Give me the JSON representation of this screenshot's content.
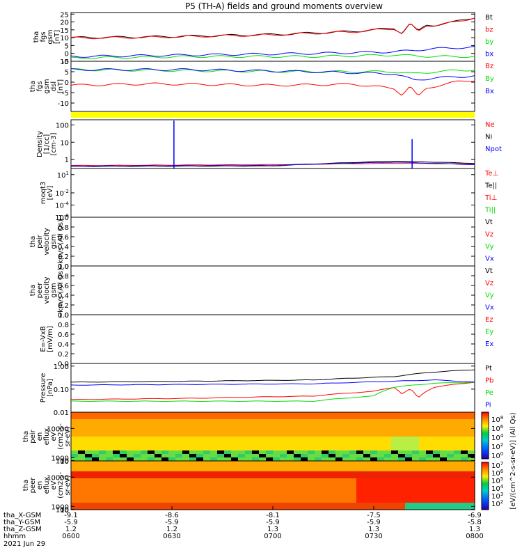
{
  "title": "P5 (TH-A) fields and ground moments overview",
  "date": "2021 Jun 29",
  "colors": {
    "black": "#000000",
    "red": "#ff0000",
    "green": "#00dd00",
    "blue": "#0000ff",
    "yellow": "#ffff00"
  },
  "ephemeris": {
    "labels": [
      "tha_X-GSM",
      "tha_Y-GSM",
      "tha_Z-GSM",
      "hhmm"
    ],
    "columns": [
      [
        "-9.1",
        "-5.9",
        "1.2",
        "0600"
      ],
      [
        "-8.6",
        "-5.9",
        "1.2",
        "0630"
      ],
      [
        "-8.1",
        "-5.9",
        "1.3",
        "0700"
      ],
      [
        "-7.5",
        "-5.9",
        "1.3",
        "0730"
      ],
      [
        "-6.9",
        "-5.8",
        "1.3",
        "0800"
      ]
    ]
  },
  "chart_data": [
    {
      "id": "p1",
      "type": "line",
      "ylabel": [
        "tha",
        "fgs",
        "gsm",
        "[nT]"
      ],
      "ylim": [
        -5,
        26
      ],
      "ticks": [
        {
          "v": 25,
          "t": "25"
        },
        {
          "v": 20,
          "t": "20"
        },
        {
          "v": 15,
          "t": "15"
        },
        {
          "v": 10,
          "t": "10"
        },
        {
          "v": 5,
          "t": "5"
        },
        {
          "v": 0,
          "t": "0"
        },
        {
          "v": -5,
          "t": "-5"
        }
      ],
      "series": [
        {
          "name": "Bt",
          "color": "#000000",
          "x": [
            0,
            0.2,
            0.5,
            0.7,
            0.8,
            0.82,
            0.84,
            0.86,
            0.88,
            0.9,
            0.95,
            1
          ],
          "y": [
            10,
            10.5,
            12,
            14,
            16,
            13,
            19,
            14,
            18,
            18,
            20,
            23
          ]
        },
        {
          "name": "bz",
          "color": "#ff0000",
          "x": [
            0,
            0.2,
            0.5,
            0.7,
            0.8,
            0.82,
            0.84,
            0.86,
            0.88,
            0.9,
            0.95,
            1
          ],
          "y": [
            9.8,
            10.3,
            11.8,
            13.8,
            15.8,
            12.8,
            18.8,
            13.8,
            17.8,
            17.8,
            19.8,
            22.8
          ]
        },
        {
          "name": "by",
          "color": "#00dd00",
          "x": [
            0,
            0.3,
            0.6,
            0.8,
            0.9,
            1
          ],
          "y": [
            -3,
            -2,
            -2,
            -1,
            -2,
            -2
          ]
        },
        {
          "name": "bx",
          "color": "#0000ff",
          "x": [
            0,
            0.3,
            0.6,
            0.8,
            0.9,
            1
          ],
          "y": [
            -2,
            -1,
            0,
            1,
            3,
            4
          ]
        }
      ]
    },
    {
      "id": "p2",
      "type": "line",
      "ylabel": [
        "tha",
        "fgs",
        "gsm",
        "dsl",
        "[nT]"
      ],
      "ylim": [
        -14,
        10
      ],
      "ticks": [
        {
          "v": 10,
          "t": "10"
        },
        {
          "v": 5,
          "t": "5"
        },
        {
          "v": 0,
          "t": "0"
        },
        {
          "v": -5,
          "t": "-5"
        },
        {
          "v": -10,
          "t": "-10"
        }
      ],
      "series": [
        {
          "name": "Bz",
          "color": "#ff0000",
          "x": [
            0,
            0.2,
            0.5,
            0.7,
            0.8,
            0.82,
            0.84,
            0.86,
            0.88,
            0.9,
            0.95,
            1
          ],
          "y": [
            -1.5,
            -0.8,
            -1.5,
            -1,
            -3,
            -6,
            -2,
            -7,
            -3,
            -2,
            0,
            1
          ]
        },
        {
          "name": "By",
          "color": "#00dd00",
          "x": [
            0,
            0.3,
            0.6,
            0.8,
            0.85,
            0.9,
            1
          ],
          "y": [
            6,
            5.5,
            5,
            5,
            4,
            5,
            6
          ]
        },
        {
          "name": "Bx",
          "color": "#0000ff",
          "x": [
            0,
            0.3,
            0.6,
            0.8,
            0.85,
            0.9,
            1
          ],
          "y": [
            6,
            6,
            5,
            4,
            1,
            2,
            3
          ]
        }
      ]
    },
    {
      "id": "p3",
      "type": "line",
      "log": true,
      "ylabel": [
        "Density",
        "[1/cc]",
        "[cm-3]"
      ],
      "ylim": [
        0.3,
        200
      ],
      "ticks": [
        {
          "v": 100,
          "t": "100"
        },
        {
          "v": 10,
          "t": "10"
        },
        {
          "v": 1,
          "t": "1"
        }
      ],
      "series": [
        {
          "name": "Ne",
          "color": "#ff0000",
          "x": [
            0,
            0.5,
            0.8,
            1
          ],
          "y": [
            0.45,
            0.5,
            0.6,
            0.55
          ]
        },
        {
          "name": "Ni",
          "color": "#000000",
          "x": [
            0,
            0.5,
            0.8,
            1
          ],
          "y": [
            0.4,
            0.42,
            0.8,
            0.6
          ]
        },
        {
          "name": "Npot",
          "color": "#0000ff",
          "x": [
            0,
            0.5,
            0.8,
            1
          ],
          "y": [
            0.42,
            0.45,
            0.7,
            0.5
          ]
        }
      ],
      "spikes": [
        {
          "x": 0.255,
          "y": 180,
          "color": "#0000ff"
        },
        {
          "x": 0.845,
          "y": 15,
          "color": "#0000ff"
        }
      ]
    },
    {
      "id": "p4",
      "type": "line",
      "log": true,
      "ylabel": [
        "moqt3",
        "[eV]"
      ],
      "ylim": [
        1e-06,
        100
      ],
      "ticks": [
        {
          "v": 10,
          "t": "10^1"
        },
        {
          "v": 0.01,
          "t": "10^-2"
        },
        {
          "v": 0.0001,
          "t": "10^-4"
        },
        {
          "v": 1e-06,
          "t": "10^-6"
        }
      ],
      "labels": [
        "Te⊥",
        "Te||",
        "Ti⊥",
        "Ti||"
      ],
      "label_colors": [
        "#ff0000",
        "#000000",
        "#ff0000",
        "#00dd00"
      ],
      "series": []
    },
    {
      "id": "p5",
      "type": "line",
      "ylabel": [
        "tha",
        "peir",
        "velocity",
        "gsm",
        "km/s (All Qs)"
      ],
      "ylim": [
        0,
        1
      ],
      "ticks": [
        {
          "v": 1,
          "t": "1.0"
        },
        {
          "v": 0.8,
          "t": "0.8"
        },
        {
          "v": 0.6,
          "t": "0.6"
        },
        {
          "v": 0.4,
          "t": "0.4"
        },
        {
          "v": 0.2,
          "t": "0.2"
        },
        {
          "v": 0,
          "t": "0.0"
        }
      ],
      "labels": [
        "Vt",
        "Vz",
        "Vy",
        "Vx"
      ],
      "label_colors": [
        "#000000",
        "#ff0000",
        "#00dd00",
        "#0000ff"
      ],
      "series": []
    },
    {
      "id": "p6",
      "type": "line",
      "ylabel": [
        "tha",
        "peer",
        "velocity",
        "gsm",
        "km/s (All Qs)"
      ],
      "ylim": [
        0,
        1
      ],
      "ticks": [
        {
          "v": 1,
          "t": "1.0"
        },
        {
          "v": 0.8,
          "t": "0.8"
        },
        {
          "v": 0.6,
          "t": "0.6"
        },
        {
          "v": 0.4,
          "t": "0.4"
        },
        {
          "v": 0.2,
          "t": "0.2"
        },
        {
          "v": 0,
          "t": "0.0"
        }
      ],
      "labels": [
        "Vt",
        "Vz",
        "Vy",
        "Vx"
      ],
      "label_colors": [
        "#000000",
        "#ff0000",
        "#00dd00",
        "#0000ff"
      ],
      "series": []
    },
    {
      "id": "p7",
      "type": "line",
      "ylabel": [
        "E=-VxB",
        "[mV/m]"
      ],
      "ylim": [
        0,
        1
      ],
      "ticks": [
        {
          "v": 1,
          "t": "1.0"
        },
        {
          "v": 0.8,
          "t": "0.8"
        },
        {
          "v": 0.6,
          "t": "0.6"
        },
        {
          "v": 0.4,
          "t": "0.4"
        },
        {
          "v": 0.2,
          "t": "0.2"
        },
        {
          "v": 0,
          "t": "0.0"
        }
      ],
      "labels": [
        "Ez",
        "Ey",
        "Ex"
      ],
      "label_colors": [
        "#ff0000",
        "#00dd00",
        "#0000ff"
      ],
      "series": []
    },
    {
      "id": "p8",
      "type": "line",
      "log": true,
      "ylabel": [
        "Pressure",
        "[nPa]"
      ],
      "ylim": [
        0.01,
        1.3
      ],
      "ticks": [
        {
          "v": 1,
          "t": "1.00"
        },
        {
          "v": 0.1,
          "t": "0.10"
        },
        {
          "v": 0.01,
          "t": "0.01"
        }
      ],
      "series": [
        {
          "name": "Pt",
          "color": "#000000",
          "x": [
            0,
            0.3,
            0.6,
            0.8,
            0.9,
            1
          ],
          "y": [
            0.2,
            0.22,
            0.25,
            0.35,
            0.55,
            0.7
          ]
        },
        {
          "name": "Pb",
          "color": "#ff0000",
          "x": [
            0,
            0.3,
            0.6,
            0.75,
            0.8,
            0.82,
            0.84,
            0.86,
            0.9,
            1
          ],
          "y": [
            0.035,
            0.04,
            0.05,
            0.08,
            0.12,
            0.06,
            0.1,
            0.04,
            0.12,
            0.2
          ]
        },
        {
          "name": "Pe",
          "color": "#00dd00",
          "x": [
            0,
            0.3,
            0.6,
            0.75,
            0.8,
            0.9,
            1
          ],
          "y": [
            0.03,
            0.03,
            0.03,
            0.05,
            0.12,
            0.18,
            0.2
          ]
        },
        {
          "name": "Pi",
          "color": "#0000ff",
          "x": [
            0,
            0.3,
            0.6,
            0.8,
            0.9,
            1
          ],
          "y": [
            0.15,
            0.16,
            0.17,
            0.22,
            0.25,
            0.2
          ]
        }
      ]
    },
    {
      "id": "p9",
      "type": "heatmap",
      "ylabel": [
        "tha",
        "peir",
        "en",
        "eflux",
        "eV",
        "(cm2-s-",
        "sr-eV)"
      ],
      "ylim": [
        5,
        15000
      ],
      "ticks": [
        {
          "v": 10000,
          "t": "10000"
        },
        {
          "v": 1000,
          "t": "1000"
        },
        {
          "v": 100,
          "t": "100"
        },
        {
          "v": 10,
          "t": "10"
        }
      ]
    },
    {
      "id": "p10",
      "type": "heatmap",
      "ylabel": [
        "tha",
        "peer",
        "en",
        "eflux",
        "eV",
        "(cm2-s-",
        "sr-eV)"
      ],
      "ylim": [
        5,
        15000
      ],
      "ticks": [
        {
          "v": 10000,
          "t": "10000"
        },
        {
          "v": 1000,
          "t": "1000"
        },
        {
          "v": 100,
          "t": "100"
        },
        {
          "v": 10,
          "t": "10"
        }
      ]
    }
  ],
  "colorbar": {
    "ticks": [
      "10^8",
      "10^6",
      "10^4",
      "10^2",
      "10^0"
    ],
    "ticks2": [
      "10^7",
      "10^6",
      "10^5",
      "10^4",
      "10^3",
      "10^2"
    ],
    "label": "[eV/(cm^2-s-sr-eV)] (All Qs)"
  }
}
